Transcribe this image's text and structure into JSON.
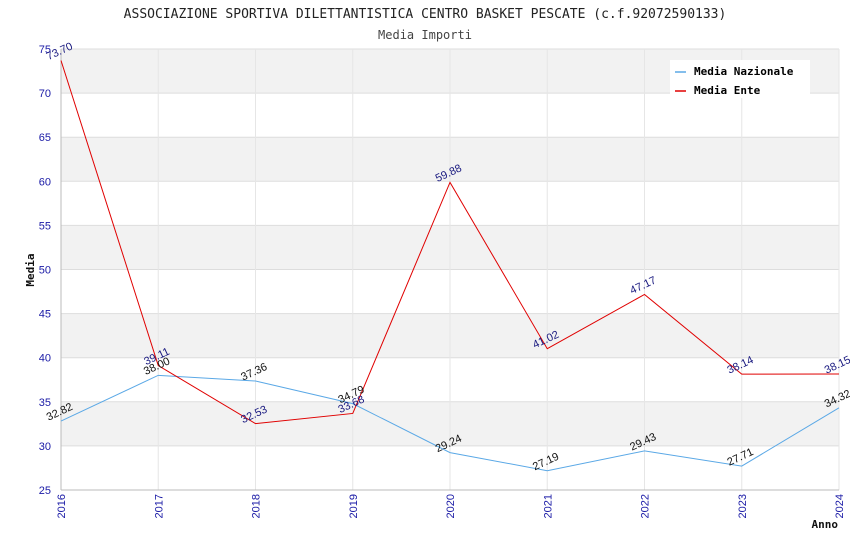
{
  "chart_data": {
    "type": "line",
    "title": "ASSOCIAZIONE SPORTIVA DILETTANTISTICA CENTRO BASKET PESCATE (c.f.92072590133)",
    "subtitle": "Media Importi",
    "xlabel": "Anno",
    "ylabel": "Media",
    "ylim": [
      25,
      75
    ],
    "yticks": [
      25,
      30,
      35,
      40,
      45,
      50,
      55,
      60,
      65,
      70,
      75
    ],
    "categories": [
      "2016",
      "2017",
      "2018",
      "2019",
      "2020",
      "2021",
      "2022",
      "2023",
      "2024"
    ],
    "series": [
      {
        "name": "Media Nazionale",
        "color": "#5aa8e6",
        "values": [
          32.82,
          38.0,
          37.36,
          34.79,
          29.24,
          27.19,
          29.43,
          27.71,
          34.32
        ],
        "labels": [
          "32.82",
          "38.00",
          "37.36",
          "34.79",
          "29.24",
          "27.19",
          "29.43",
          "27.71",
          "34.32"
        ]
      },
      {
        "name": "Media Ente",
        "color": "#e00000",
        "values": [
          73.7,
          39.11,
          32.53,
          33.68,
          59.88,
          41.02,
          47.17,
          38.14,
          38.15
        ],
        "labels": [
          "73.70",
          "39.11",
          "32.53",
          "33.68",
          "59.88",
          "41.02",
          "47.17",
          "38.14",
          "38.15"
        ]
      }
    ],
    "legend": "top-right",
    "grid": true
  }
}
